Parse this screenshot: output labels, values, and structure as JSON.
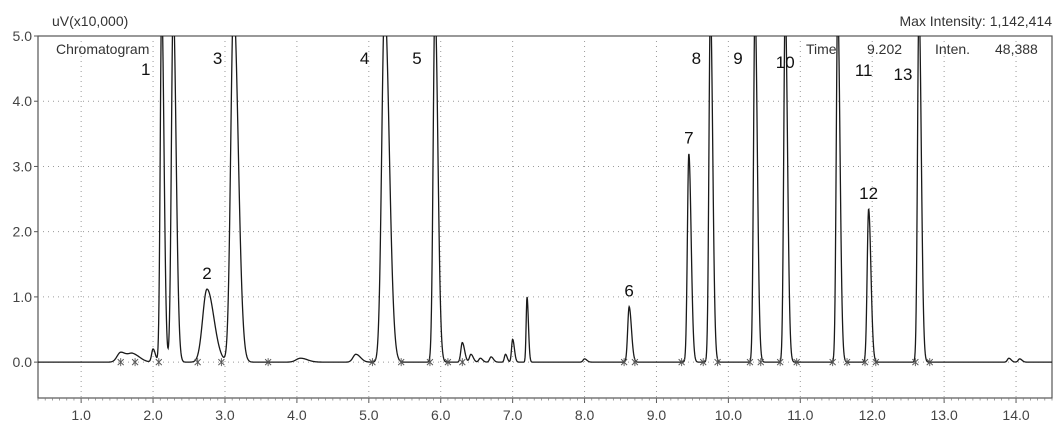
{
  "chart_data": {
    "type": "line",
    "title": "Chromatogram",
    "ylabel": "uV(x10,000)",
    "xlabel": "",
    "max_intensity_label": "Max Intensity: 1,142,414",
    "readout": {
      "time_label": "Time",
      "time_value": "9.202",
      "inten_label": "Inten.",
      "inten_value": "48,388"
    },
    "xlim": [
      0.4,
      14.5
    ],
    "ylim": [
      -0.55,
      5.0
    ],
    "x_ticks": [
      "1.0",
      "2.0",
      "3.0",
      "4.0",
      "5.0",
      "6.0",
      "7.0",
      "8.0",
      "9.0",
      "10.0",
      "11.0",
      "12.0",
      "13.0",
      "14.0"
    ],
    "y_ticks": [
      "0.0",
      "1.0",
      "2.0",
      "3.0",
      "4.0",
      "5.0"
    ],
    "grid": true,
    "baseline": 0.0,
    "peaks": [
      {
        "label": "1",
        "rt": 2.12,
        "height": 5.5,
        "width": 0.02
      },
      {
        "label": "",
        "rt": 2.28,
        "height": 5.5,
        "width": 0.025
      },
      {
        "label": "2",
        "rt": 2.75,
        "height": 1.12,
        "width": 0.06
      },
      {
        "label": "3",
        "rt": 3.12,
        "height": 5.5,
        "width": 0.04
      },
      {
        "label": "4",
        "rt": 5.22,
        "height": 5.5,
        "width": 0.04
      },
      {
        "label": "5",
        "rt": 5.92,
        "height": 5.5,
        "width": 0.025
      },
      {
        "label": "6",
        "rt": 8.62,
        "height": 0.85,
        "width": 0.02
      },
      {
        "label": "7",
        "rt": 9.45,
        "height": 3.2,
        "width": 0.02
      },
      {
        "label": "8",
        "rt": 9.75,
        "height": 5.5,
        "width": 0.02
      },
      {
        "label": "9",
        "rt": 10.37,
        "height": 5.5,
        "width": 0.02
      },
      {
        "label": "10",
        "rt": 10.79,
        "height": 5.5,
        "width": 0.02
      },
      {
        "label": "11",
        "rt": 11.52,
        "height": 5.5,
        "width": 0.02
      },
      {
        "label": "12",
        "rt": 11.95,
        "height": 2.35,
        "width": 0.02
      },
      {
        "label": "13",
        "rt": 12.65,
        "height": 5.5,
        "width": 0.02
      }
    ],
    "minor_peaks": [
      {
        "rt": 1.55,
        "height": 0.15,
        "width": 0.05
      },
      {
        "rt": 1.72,
        "height": 0.12,
        "width": 0.06
      },
      {
        "rt": 2.0,
        "height": 0.2,
        "width": 0.02
      },
      {
        "rt": 4.05,
        "height": 0.06,
        "width": 0.06
      },
      {
        "rt": 4.82,
        "height": 0.12,
        "width": 0.04
      },
      {
        "rt": 6.3,
        "height": 0.3,
        "width": 0.02
      },
      {
        "rt": 6.42,
        "height": 0.12,
        "width": 0.02
      },
      {
        "rt": 6.55,
        "height": 0.06,
        "width": 0.02
      },
      {
        "rt": 6.7,
        "height": 0.08,
        "width": 0.02
      },
      {
        "rt": 6.9,
        "height": 0.12,
        "width": 0.015
      },
      {
        "rt": 7.0,
        "height": 0.35,
        "width": 0.015
      },
      {
        "rt": 7.2,
        "height": 1.0,
        "width": 0.012
      },
      {
        "rt": 8.0,
        "height": 0.05,
        "width": 0.02
      },
      {
        "rt": 13.9,
        "height": 0.06,
        "width": 0.02
      },
      {
        "rt": 14.05,
        "height": 0.05,
        "width": 0.02
      }
    ],
    "integration_marks": [
      1.55,
      1.75,
      2.08,
      2.62,
      2.95,
      3.6,
      5.05,
      5.45,
      5.85,
      6.1,
      6.3,
      8.55,
      8.7,
      9.35,
      9.65,
      9.85,
      10.3,
      10.45,
      10.72,
      10.95,
      11.45,
      11.65,
      11.9,
      12.05,
      12.6,
      12.8
    ]
  }
}
